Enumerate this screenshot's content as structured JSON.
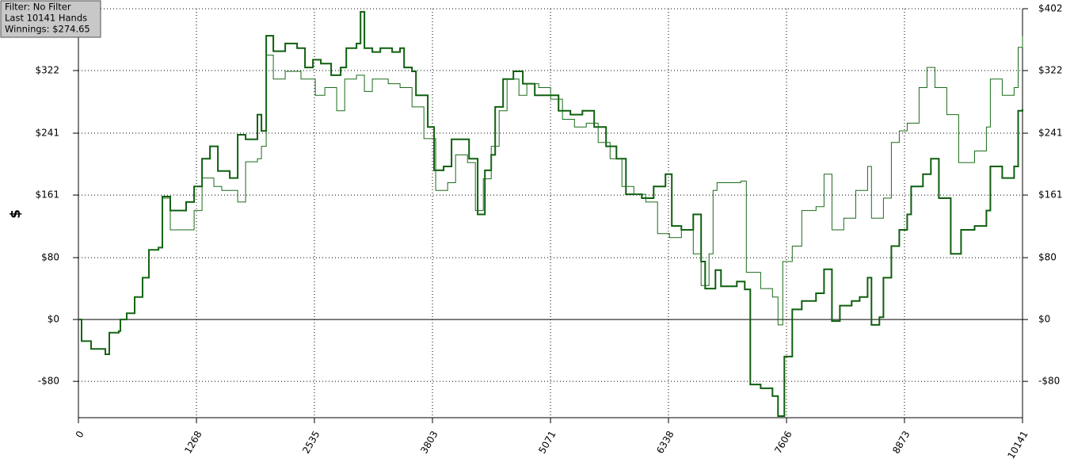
{
  "chart_data": {
    "type": "line",
    "annotations": [
      "Filter: No Filter",
      "Last 10141 Hands",
      "Winnings: $274.65"
    ],
    "y_label": "$",
    "xlim": [
      0,
      10141
    ],
    "xticks": [
      0,
      1268,
      2535,
      3803,
      5071,
      6338,
      7606,
      8873,
      10141
    ],
    "ylim": [
      -127,
      402
    ],
    "yticks": [
      {
        "value": 402,
        "label": "$402"
      },
      {
        "value": 322,
        "label": "$322"
      },
      {
        "value": 241,
        "label": "$241"
      },
      {
        "value": 161,
        "label": "$161"
      },
      {
        "value": 80,
        "label": "$80"
      },
      {
        "value": 0,
        "label": "$0"
      },
      {
        "value": -80,
        "label": "-$80"
      }
    ],
    "grid": true,
    "series": [
      {
        "color": "#0f5f0f",
        "width": 2,
        "x": [
          0,
          34,
          136,
          289,
          332,
          434,
          451,
          519,
          604,
          689,
          757,
          860,
          902,
          987,
          1072,
          1157,
          1243,
          1328,
          1413,
          1498,
          1626,
          1711,
          1796,
          1923,
          1966,
          2017,
          2094,
          2221,
          2349,
          2434,
          2519,
          2604,
          2715,
          2817,
          2877,
          2987,
          3030,
          3072,
          3157,
          3243,
          3370,
          3455,
          3498,
          3583,
          3626,
          3753,
          3821,
          3923,
          4008,
          4136,
          4196,
          4289,
          4366,
          4434,
          4477,
          4562,
          4672,
          4774,
          4902,
          5029,
          5157,
          5285,
          5413,
          5540,
          5668,
          5779,
          5881,
          6051,
          6179,
          6306,
          6374,
          6477,
          6604,
          6689,
          6732,
          6843,
          6902,
          7072,
          7157,
          7217,
          7328,
          7455,
          7515,
          7583,
          7668,
          7770,
          7923,
          8009,
          8094,
          8179,
          8306,
          8392,
          8477,
          8519,
          8604,
          8647,
          8732,
          8817,
          8902,
          8945,
          9072,
          9157,
          9243,
          9370,
          9481,
          9626,
          9753,
          9796,
          9923,
          10051,
          10094,
          10141
        ],
        "values": [
          0,
          -28,
          -38,
          -45,
          -17,
          -15,
          0,
          8,
          29,
          54,
          90,
          93,
          159,
          141,
          141,
          152,
          172,
          208,
          224,
          192,
          183,
          239,
          233,
          265,
          244,
          367,
          347,
          357,
          351,
          326,
          336,
          331,
          316,
          326,
          351,
          357,
          398,
          351,
          346,
          351,
          346,
          351,
          326,
          321,
          290,
          249,
          193,
          198,
          233,
          233,
          208,
          136,
          193,
          213,
          275,
          311,
          321,
          305,
          290,
          290,
          270,
          265,
          270,
          249,
          224,
          208,
          162,
          157,
          172,
          188,
          121,
          116,
          136,
          75,
          40,
          64,
          43,
          49,
          39,
          -84,
          -89,
          -99,
          -125,
          -48,
          13,
          24,
          34,
          65,
          -2,
          18,
          24,
          29,
          54,
          -7,
          3,
          54,
          95,
          116,
          136,
          172,
          188,
          208,
          157,
          85,
          116,
          121,
          141,
          198,
          183,
          198,
          270,
          272
        ]
      },
      {
        "color": "#1a6b1a",
        "width": 1,
        "x": [
          0,
          34,
          136,
          289,
          332,
          434,
          451,
          519,
          604,
          689,
          757,
          860,
          902,
          987,
          1157,
          1243,
          1328,
          1455,
          1540,
          1711,
          1796,
          1923,
          1966,
          2017,
          2094,
          2221,
          2391,
          2545,
          2647,
          2774,
          2860,
          2987,
          3072,
          3157,
          3328,
          3455,
          3583,
          3711,
          3838,
          3966,
          4051,
          4179,
          4264,
          4349,
          4434,
          4519,
          4604,
          4732,
          4817,
          4945,
          5072,
          5200,
          5328,
          5455,
          5583,
          5711,
          5838,
          5966,
          6094,
          6221,
          6349,
          6477,
          6604,
          6689,
          6774,
          6817,
          6860,
          7115,
          7174,
          7328,
          7455,
          7515,
          7566,
          7668,
          7770,
          7923,
          8009,
          8094,
          8221,
          8349,
          8477,
          8519,
          8647,
          8732,
          8817,
          8902,
          9030,
          9115,
          9200,
          9328,
          9455,
          9626,
          9753,
          9796,
          9923,
          10051,
          10094,
          10141
        ],
        "values": [
          0,
          -28,
          -38,
          -45,
          -17,
          -15,
          0,
          8,
          29,
          54,
          90,
          93,
          157,
          116,
          116,
          141,
          183,
          172,
          167,
          152,
          204,
          208,
          224,
          342,
          311,
          321,
          311,
          290,
          300,
          270,
          311,
          316,
          295,
          311,
          305,
          300,
          275,
          234,
          167,
          177,
          213,
          203,
          141,
          182,
          224,
          270,
          311,
          290,
          305,
          300,
          285,
          259,
          249,
          254,
          229,
          208,
          172,
          162,
          152,
          111,
          106,
          116,
          85,
          44,
          85,
          167,
          177,
          179,
          61,
          40,
          29,
          -7,
          75,
          95,
          141,
          146,
          188,
          116,
          131,
          167,
          198,
          131,
          157,
          229,
          244,
          254,
          300,
          326,
          300,
          265,
          203,
          218,
          249,
          311,
          290,
          300,
          352,
          367
        ]
      }
    ]
  }
}
